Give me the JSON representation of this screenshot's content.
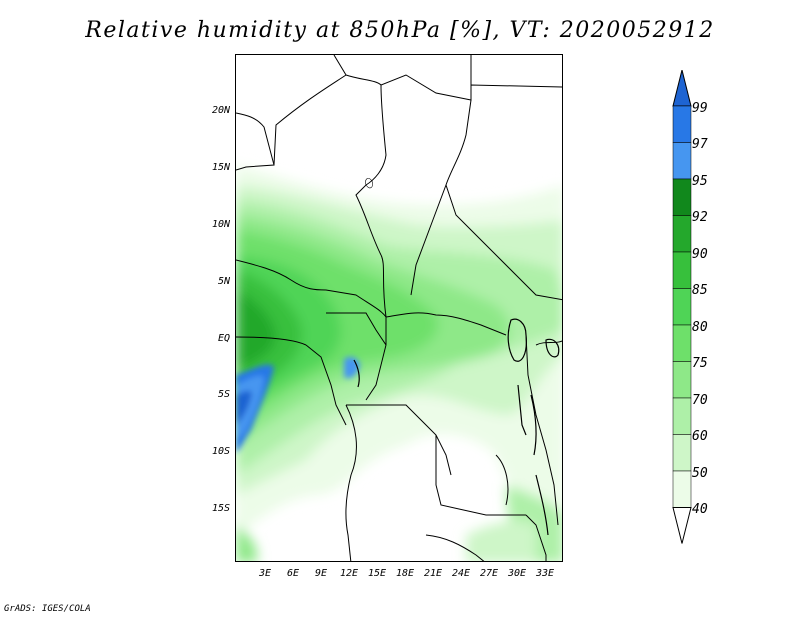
{
  "title": "Relative humidity at 850hPa [%], VT: 2020052912",
  "credit": "GrADS: IGES/COLA",
  "map": {
    "latitude_labels": [
      "20N",
      "15N",
      "10N",
      "5N",
      "EQ",
      "5S",
      "10S",
      "15S"
    ],
    "longitude_labels": [
      "3E",
      "6E",
      "9E",
      "12E",
      "15E",
      "18E",
      "21E",
      "24E",
      "27E",
      "30E",
      "33E"
    ]
  },
  "colorbar": {
    "labels": [
      "99",
      "97",
      "95",
      "92",
      "90",
      "85",
      "80",
      "75",
      "70",
      "60",
      "50",
      "40"
    ],
    "colors": [
      "#1e64d2",
      "#2878e6",
      "#4696f0",
      "#11881c",
      "#24a82c",
      "#37c03c",
      "#4fd456",
      "#6ee06a",
      "#8ee888",
      "#aef0a8",
      "#cef6c8",
      "#ecfce8"
    ]
  }
}
